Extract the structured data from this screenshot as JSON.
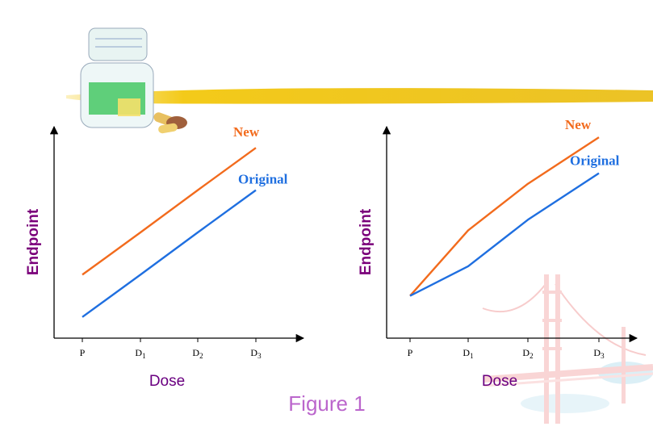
{
  "figure": {
    "caption": "Figure 1"
  },
  "colors": {
    "new": "#f26b1d",
    "original": "#1f6fe0",
    "axis": "#000000",
    "ylabel": "#7a007a",
    "xlabel": "#6a0080",
    "caption": "#bb66cc",
    "highlighter": "#f2c400"
  },
  "decorations": {
    "pill_bottle": "pill-bottle-icon",
    "capsules": "capsule-icon",
    "highlighter_stroke": "highlighter-stroke",
    "bridge": "golden-gate-bridge-illustration"
  },
  "chart_data": [
    {
      "type": "line",
      "title": "",
      "xlabel": "Dose",
      "ylabel": "Endpoint",
      "categories": [
        "P",
        "D1",
        "D2",
        "D3"
      ],
      "category_labels": [
        {
          "main": "P",
          "sub": ""
        },
        {
          "main": "D",
          "sub": "1"
        },
        {
          "main": "D",
          "sub": "2"
        },
        {
          "main": "D",
          "sub": "3"
        }
      ],
      "ylim": [
        0,
        10
      ],
      "grid": false,
      "series": [
        {
          "name": "New",
          "values": [
            3,
            5,
            7,
            9
          ]
        },
        {
          "name": "Original",
          "values": [
            1,
            3,
            5,
            7
          ]
        }
      ]
    },
    {
      "type": "line",
      "title": "",
      "xlabel": "Dose",
      "ylabel": "Endpoint",
      "categories": [
        "P",
        "D1",
        "D2",
        "D3"
      ],
      "category_labels": [
        {
          "main": "P",
          "sub": ""
        },
        {
          "main": "D",
          "sub": "1"
        },
        {
          "main": "D",
          "sub": "2"
        },
        {
          "main": "D",
          "sub": "3"
        }
      ],
      "ylim": [
        0,
        10
      ],
      "grid": false,
      "series": [
        {
          "name": "New",
          "values": [
            2,
            5.1,
            7.3,
            9.5
          ]
        },
        {
          "name": "Original",
          "values": [
            2,
            3.4,
            5.6,
            7.8
          ]
        }
      ]
    }
  ]
}
